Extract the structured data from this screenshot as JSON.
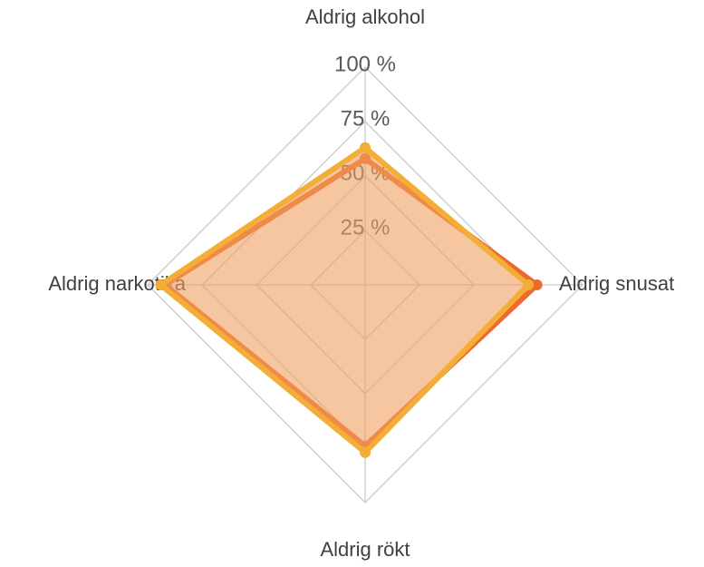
{
  "chart_data": {
    "type": "radar",
    "categories": [
      "Aldrig alkohol",
      "Aldrig snusat",
      "Aldrig rökt",
      "Aldrig narkotika"
    ],
    "series": [
      {
        "color": "#ED6A2C",
        "values": [
          58,
          79,
          74,
          92
        ]
      },
      {
        "color": "#F2AE36",
        "fill": "#F0A060",
        "values": [
          63,
          75,
          77,
          94
        ]
      }
    ],
    "rlim": [
      0,
      100
    ],
    "rticks": [
      {
        "value": 25,
        "label": "25 %"
      },
      {
        "value": 50,
        "label": "50 %"
      },
      {
        "value": 75,
        "label": "75 %"
      },
      {
        "value": 100,
        "label": "100 %"
      }
    ],
    "grid": true
  }
}
